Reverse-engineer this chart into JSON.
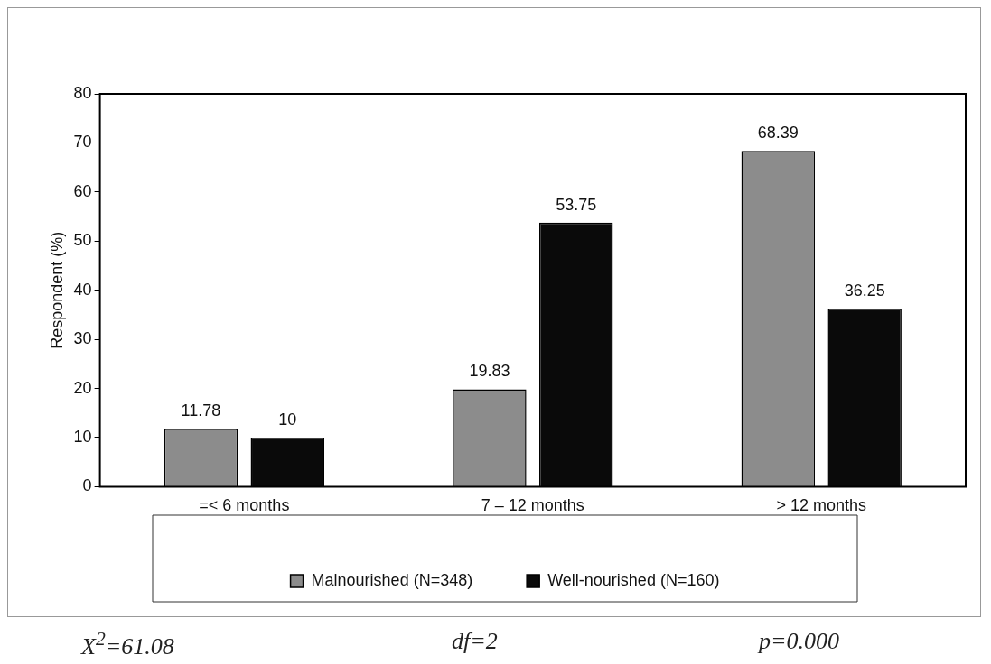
{
  "chart_data": {
    "type": "bar",
    "ylabel": "Respondent (%)",
    "categories": [
      "=< 6 months",
      "7 – 12 months",
      "> 12 months"
    ],
    "series": [
      {
        "name": "Malnourished (N=348)",
        "color": "#8c8c8c",
        "values": [
          11.78,
          19.83,
          68.39
        ]
      },
      {
        "name": "Well-nourished (N=160)",
        "color": "#0a0a0a",
        "values": [
          10,
          53.75,
          36.25
        ]
      }
    ],
    "ylim": [
      0,
      80
    ],
    "yticks": [
      0,
      10,
      20,
      30,
      40,
      50,
      60,
      70,
      80
    ],
    "data_labels": true,
    "legend": "bottom",
    "annotations": [
      "X$^{2}$=61.08",
      "df=2",
      "p=0.000"
    ]
  }
}
